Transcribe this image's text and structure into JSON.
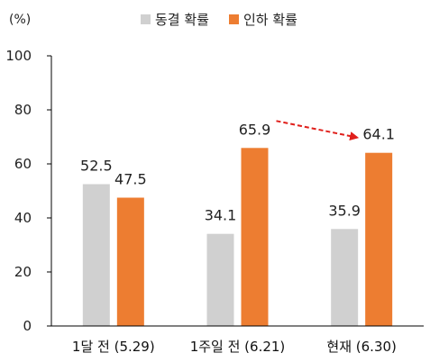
{
  "chart_data": {
    "type": "bar",
    "unit": "(%)",
    "ylim": [
      0,
      100
    ],
    "yticks": [
      0,
      20,
      40,
      60,
      80,
      100
    ],
    "categories": [
      "1달 전 (5.29)",
      "1주일 전 (6.21)",
      "현재 (6.30)"
    ],
    "series": [
      {
        "name": "동결 확률",
        "values": [
          52.5,
          34.1,
          35.9
        ],
        "color": "#d0d0d0"
      },
      {
        "name": "인하 확률",
        "values": [
          47.5,
          65.9,
          64.1
        ],
        "color": "#ed7d31"
      }
    ],
    "data_labels": [
      [
        "52.5",
        "34.1",
        "35.9"
      ],
      [
        "47.5",
        "65.9",
        "64.1"
      ]
    ],
    "annotation": {
      "type": "arrow",
      "style": "dashed",
      "color": "#e0201c",
      "from": {
        "category": 1,
        "series": 1
      },
      "to": {
        "category": 2,
        "series": 1
      }
    },
    "legend_position": "top",
    "grid": false
  }
}
